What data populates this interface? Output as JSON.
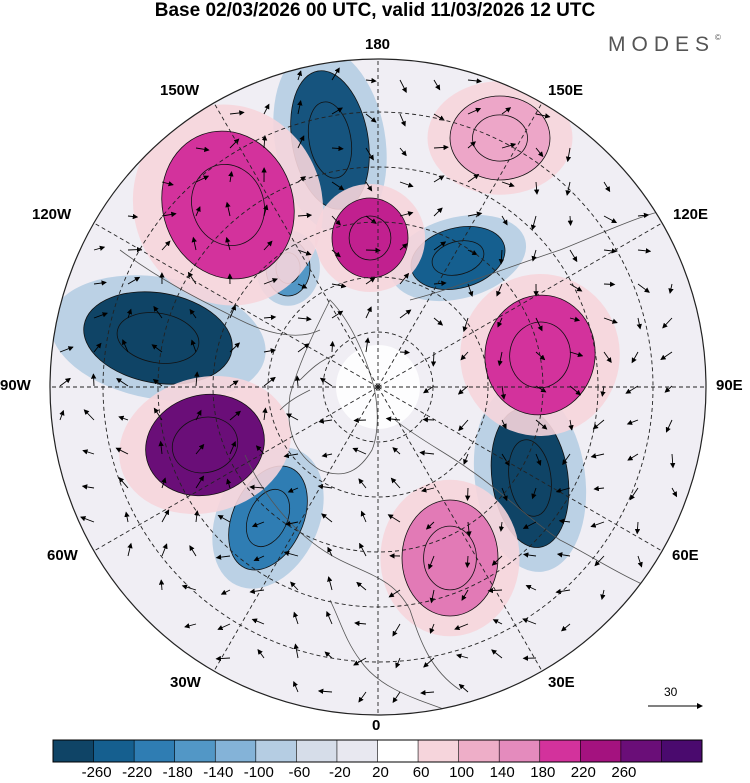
{
  "header": {
    "title": "Base 02/03/2026 00 UTC, valid 11/03/2026 12 UTC",
    "logo": "MODES",
    "logo_mark": "©"
  },
  "map": {
    "projection": "north-polar-stereographic",
    "longitude_labels": {
      "top": "180",
      "top_left": "150W",
      "top_right": "150E",
      "upper_left": "120W",
      "upper_right": "120E",
      "left": "90W",
      "right": "90E",
      "lower_left": "60W",
      "lower_right": "60E",
      "bottom_left": "30W",
      "bottom_right": "30E",
      "bottom": "0"
    },
    "anomaly_centers": [
      {
        "sign": "negative",
        "value": -200,
        "color": "#16547e"
      },
      {
        "sign": "negative",
        "value": -260,
        "color": "#0f4466"
      },
      {
        "sign": "negative",
        "value": -220,
        "color": "#155f8f"
      },
      {
        "sign": "negative",
        "value": -160,
        "color": "#2f7db3"
      },
      {
        "sign": "negative",
        "value": -260,
        "color": "#0f4466"
      },
      {
        "sign": "negative",
        "value": -140,
        "color": "#5297c6"
      },
      {
        "sign": "positive",
        "value": 180,
        "color": "#d3329c"
      },
      {
        "sign": "positive",
        "value": 200,
        "color": "#c1208f"
      },
      {
        "sign": "positive",
        "value": 260,
        "color": "#6a0e78"
      },
      {
        "sign": "positive",
        "value": 180,
        "color": "#d3329c"
      },
      {
        "sign": "positive",
        "value": 120,
        "color": "#e27ab6"
      },
      {
        "sign": "positive",
        "value": 100,
        "color": "#eda6c8"
      }
    ],
    "reference_vector": "30"
  },
  "colorbar": {
    "colors": [
      "#0f4466",
      "#155f8f",
      "#2f7db3",
      "#5297c6",
      "#84b3d8",
      "#b5cde3",
      "#d6dde9",
      "#e8e8f0",
      "#ffffff",
      "#f6d5dc",
      "#eeaec8",
      "#e48bbd",
      "#d3329c",
      "#a4127f",
      "#6a0e78",
      "#4a0a6e"
    ],
    "ticks": [
      "-260",
      "-220",
      "-180",
      "-140",
      "-100",
      "-60",
      "-20",
      "20",
      "60",
      "100",
      "140",
      "180",
      "220",
      "260"
    ]
  }
}
